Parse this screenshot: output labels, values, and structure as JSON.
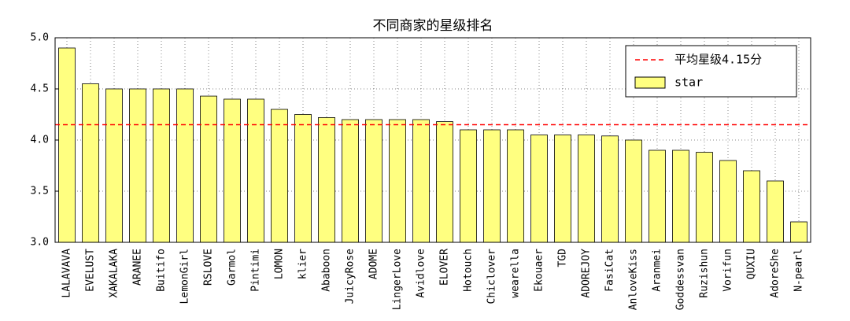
{
  "chart_data": {
    "type": "bar",
    "title": "不同商家的星级排名",
    "categories": [
      "LALAVAVA",
      "EVELUST",
      "XAKALAKA",
      "ARANEE",
      "Buitifo",
      "LemonGirl",
      "RSLOVE",
      "Garmol",
      "Pintimi",
      "LOMON",
      "klier",
      "Ababoon",
      "JuicyRose",
      "ADOME",
      "LingerLove",
      "Avidlove",
      "ELOVER",
      "Hotouch",
      "Chiclover",
      "wearella",
      "Ekouaer",
      "TGD",
      "ADOREJOY",
      "FasiCat",
      "AnloveKiss",
      "Aranmei",
      "Goddessvan",
      "Ruzishun",
      "Vorifun",
      "QUXIU",
      "AdoreShe",
      "N-pearl"
    ],
    "series": [
      {
        "name": "star",
        "color": "#ffff80",
        "values": [
          4.9,
          4.55,
          4.5,
          4.5,
          4.5,
          4.5,
          4.43,
          4.4,
          4.4,
          4.3,
          4.25,
          4.22,
          4.2,
          4.2,
          4.2,
          4.2,
          4.18,
          4.1,
          4.1,
          4.1,
          4.05,
          4.05,
          4.05,
          4.04,
          4.0,
          3.9,
          3.9,
          3.88,
          3.8,
          3.7,
          3.6,
          3.2
        ]
      }
    ],
    "reference_line": {
      "value": 4.15,
      "label": "平均星级4.15分",
      "color": "#ff0000"
    },
    "ylim": [
      3.0,
      5.0
    ],
    "yticks": [
      {
        "value": 3,
        "label": "3.0"
      },
      3.5,
      {
        "value": 4,
        "label": "4.0"
      },
      4.5,
      {
        "value": 5,
        "label": "5.0"
      }
    ],
    "grid": true,
    "legend": "upper right"
  }
}
